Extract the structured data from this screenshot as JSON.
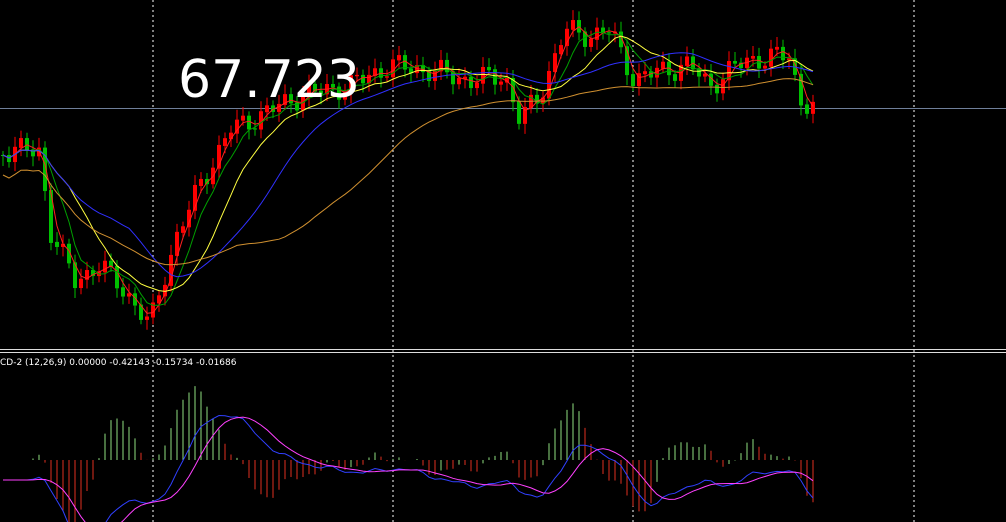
{
  "price_label": "67.723",
  "indicator_label": "CD-2 (12,26,9) 0.00000 -0.42143 -0.15734 -0.01686"
}
